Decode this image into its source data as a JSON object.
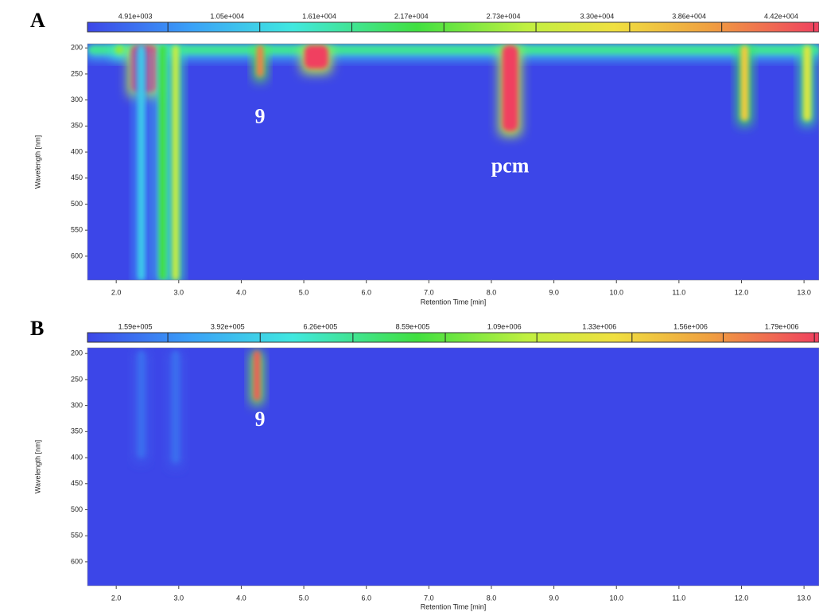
{
  "chart_data": [
    {
      "type": "heatmap",
      "panel_label": "A",
      "x_label": "Retention Time [min]",
      "y_label": "Wavelength [nm]",
      "xlim": [
        1.54,
        13.24
      ],
      "ylim": [
        192,
        646
      ],
      "xticks": [
        {
          "value": 2,
          "label": "2.0"
        },
        {
          "value": 3,
          "label": "3.0"
        },
        {
          "value": 4,
          "label": "4.0"
        },
        {
          "value": 5,
          "label": "5.0"
        },
        {
          "value": 6,
          "label": "6.0"
        },
        {
          "value": 7,
          "label": "7.0"
        },
        {
          "value": 8,
          "label": "8.0"
        },
        {
          "value": 9,
          "label": "9.0"
        },
        {
          "value": 10,
          "label": "10.0"
        },
        {
          "value": 11,
          "label": "11.0"
        },
        {
          "value": 12,
          "label": "12.0"
        },
        {
          "value": 13,
          "label": "13.0"
        }
      ],
      "yticks": [
        200,
        250,
        300,
        350,
        400,
        450,
        500,
        550,
        600
      ],
      "zlim": [
        2000,
        46500
      ],
      "zticks": [
        {
          "value": 4910,
          "label": "4.91e+003"
        },
        {
          "value": 10500,
          "label": "1.05e+004"
        },
        {
          "value": 16100,
          "label": "1.61e+004"
        },
        {
          "value": 21700,
          "label": "2.17e+004"
        },
        {
          "value": 27300,
          "label": "2.73e+004"
        },
        {
          "value": 33000,
          "label": "3.30e+004"
        },
        {
          "value": 38600,
          "label": "3.86e+004"
        },
        {
          "value": 44200,
          "label": "4.42e+004"
        }
      ],
      "peaks": [
        {
          "x": 7.4,
          "width": 11.7,
          "y": [
            195,
            212
          ],
          "value": 18000
        },
        {
          "x": 2.05,
          "width": 0.15,
          "y": [
            195,
            212
          ],
          "value": 26000
        },
        {
          "x": 2.45,
          "width": 0.42,
          "y": [
            195,
            285
          ],
          "value": 50000
        },
        {
          "x": 2.4,
          "width": 0.1,
          "y": [
            195,
            646
          ],
          "value": 12000
        },
        {
          "x": 2.75,
          "width": 0.12,
          "y": [
            195,
            646
          ],
          "value": 22000
        },
        {
          "x": 2.95,
          "width": 0.1,
          "y": [
            195,
            646
          ],
          "value": 30000
        },
        {
          "x": 4.3,
          "width": 0.1,
          "y": [
            195,
            255
          ],
          "value": 42000
        },
        {
          "x": 5.2,
          "width": 0.38,
          "y": [
            195,
            240
          ],
          "value": 50000
        },
        {
          "x": 8.3,
          "width": 0.25,
          "y": [
            195,
            360
          ],
          "value": 50000
        },
        {
          "x": 12.05,
          "width": 0.12,
          "y": [
            195,
            340
          ],
          "value": 36000
        },
        {
          "x": 13.05,
          "width": 0.12,
          "y": [
            195,
            340
          ],
          "value": 32000
        }
      ],
      "annotations": [
        {
          "text": "9",
          "x": 4.3,
          "y": 335
        },
        {
          "text": "pcm",
          "x": 8.3,
          "y": 430
        }
      ]
    },
    {
      "type": "heatmap",
      "panel_label": "B",
      "x_label": "Retention Time [min]",
      "y_label": "Wavelength [nm]",
      "xlim": [
        1.54,
        13.24
      ],
      "ylim": [
        189,
        646
      ],
      "xticks": [
        {
          "value": 2,
          "label": "2.0"
        },
        {
          "value": 3,
          "label": "3.0"
        },
        {
          "value": 4,
          "label": "4.0"
        },
        {
          "value": 5,
          "label": "5.0"
        },
        {
          "value": 6,
          "label": "6.0"
        },
        {
          "value": 7,
          "label": "7.0"
        },
        {
          "value": 8,
          "label": "8.0"
        },
        {
          "value": 9,
          "label": "9.0"
        },
        {
          "value": 10,
          "label": "10.0"
        },
        {
          "value": 11,
          "label": "11.0"
        },
        {
          "value": 12,
          "label": "12.0"
        },
        {
          "value": 13,
          "label": "13.0"
        }
      ],
      "yticks": [
        200,
        250,
        300,
        350,
        400,
        450,
        500,
        550,
        600
      ],
      "zlim": [
        38500,
        1884000
      ],
      "zticks": [
        {
          "value": 159000,
          "label": "1.59e+005"
        },
        {
          "value": 392000,
          "label": "3.92e+005"
        },
        {
          "value": 626000,
          "label": "6.26e+005"
        },
        {
          "value": 859000,
          "label": "8.59e+005"
        },
        {
          "value": 1090000,
          "label": "1.09e+006"
        },
        {
          "value": 1330000,
          "label": "1.33e+006"
        },
        {
          "value": 1560000,
          "label": "1.56e+006"
        },
        {
          "value": 1790000,
          "label": "1.79e+006"
        }
      ],
      "peaks": [
        {
          "x": 2.4,
          "width": 0.12,
          "y": [
            195,
            400
          ],
          "value": 150000
        },
        {
          "x": 2.95,
          "width": 0.12,
          "y": [
            195,
            410
          ],
          "value": 150000
        },
        {
          "x": 4.25,
          "width": 0.1,
          "y": [
            195,
            290
          ],
          "value": 1800000
        }
      ],
      "annotations": [
        {
          "text": "9",
          "x": 4.3,
          "y": 330
        }
      ]
    }
  ]
}
